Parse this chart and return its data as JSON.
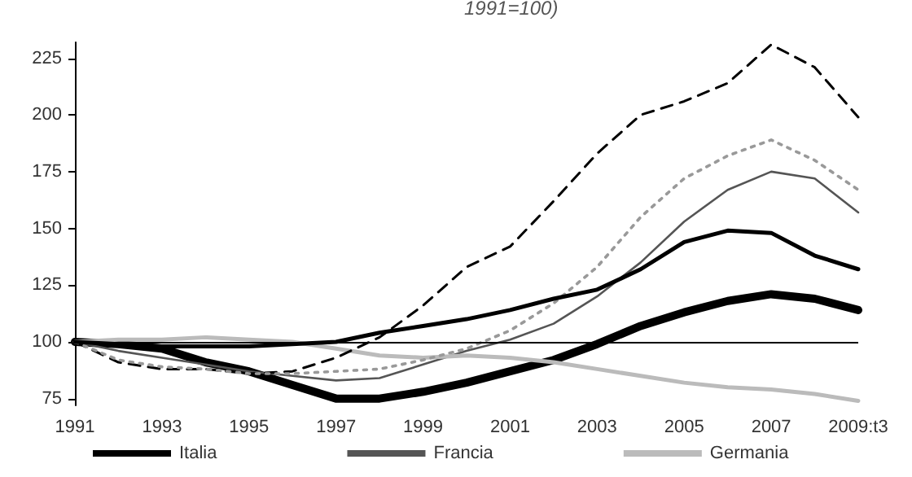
{
  "chart_data": {
    "type": "line",
    "title": "1991=100)",
    "categories": [
      "1991",
      null,
      "1993",
      null,
      "1995",
      null,
      "1997",
      null,
      "1999",
      null,
      "2001",
      null,
      "2003",
      null,
      "2005",
      null,
      "2007",
      null,
      "2009:t3"
    ],
    "series": [
      {
        "name": "Italia",
        "color": "#000000",
        "line_style": "solid",
        "values": [
          100,
          99,
          97,
          91,
          87,
          81,
          75,
          75,
          78,
          82,
          87,
          92,
          99,
          107,
          113,
          118,
          121,
          119,
          114
        ]
      },
      {
        "name": "Francia",
        "color": "#555555",
        "line_style": "solid",
        "values": [
          100,
          96,
          93,
          90,
          87,
          85,
          83,
          84,
          90,
          96,
          101,
          108,
          120,
          135,
          153,
          167,
          175,
          172,
          157
        ]
      },
      {
        "name": "Germania",
        "color": "#bbbbbb",
        "line_style": "solid",
        "values": [
          100,
          101,
          101,
          102,
          101,
          100,
          97,
          94,
          93,
          94,
          93,
          91,
          88,
          85,
          82,
          80,
          79,
          77,
          74
        ]
      },
      {
        "color": "#000000",
        "line_style": "dashed",
        "values": [
          100,
          91,
          88,
          88,
          86,
          87,
          93,
          102,
          116,
          133,
          142,
          162,
          183,
          200,
          206,
          214,
          231,
          221,
          199
        ]
      },
      {
        "color": "#999999",
        "line_style": "dotted",
        "values": [
          100,
          92,
          89,
          88,
          86,
          86,
          87,
          88,
          92,
          97,
          105,
          117,
          133,
          155,
          172,
          182,
          189,
          180,
          167
        ]
      },
      {
        "color": "#000000",
        "line_style": "solid",
        "values": [
          100,
          99,
          98,
          98,
          98,
          99,
          100,
          104,
          107,
          110,
          114,
          119,
          123,
          132,
          144,
          149,
          148,
          138,
          132
        ]
      }
    ],
    "ylim": [
      72,
      232
    ],
    "yticks": [
      75,
      100,
      125,
      150,
      175,
      200,
      225
    ],
    "ref_lines": [
      {
        "axis": "y",
        "value": 100,
        "color": "#000000"
      }
    ],
    "grid": false,
    "legend": "bottom",
    "marker": "none"
  }
}
